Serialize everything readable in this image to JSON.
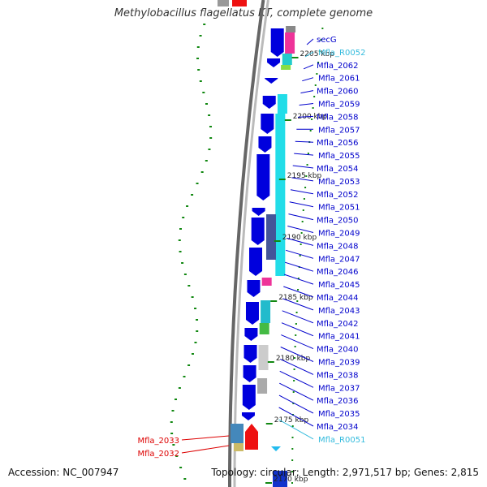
{
  "title": "Methylobacillus flagellatus KT, complete genome",
  "accession": "Accession: NC_007947",
  "summary": "Topology: circular; Length: 2,971,517 bp; Genes: 2,815",
  "colors": {
    "gene_label": "#0000cc",
    "rna_label": "#33bbdd",
    "highlight_label": "#dd0000",
    "cds_block": "#0000dd",
    "cyan_track": "#22dde8",
    "scale_ticks": "#118811"
  },
  "scale_ticks": [
    "2205 kbp",
    "2200 kbp",
    "2195 kbp",
    "2190 kbp",
    "2185 kbp",
    "2180 kbp",
    "2175 kbp",
    "2170 kbp"
  ],
  "gene_labels": [
    {
      "name": "secG",
      "kind": "gene"
    },
    {
      "name": "Mfla_R0052",
      "kind": "rna"
    },
    {
      "name": "Mfla_2062",
      "kind": "gene"
    },
    {
      "name": "Mfla_2061",
      "kind": "gene"
    },
    {
      "name": "Mfla_2060",
      "kind": "gene"
    },
    {
      "name": "Mfla_2059",
      "kind": "gene"
    },
    {
      "name": "Mfla_2058",
      "kind": "gene"
    },
    {
      "name": "Mfla_2057",
      "kind": "gene"
    },
    {
      "name": "Mfla_2056",
      "kind": "gene"
    },
    {
      "name": "Mfla_2055",
      "kind": "gene"
    },
    {
      "name": "Mfla_2054",
      "kind": "gene"
    },
    {
      "name": "Mfla_2053",
      "kind": "gene"
    },
    {
      "name": "Mfla_2052",
      "kind": "gene"
    },
    {
      "name": "Mfla_2051",
      "kind": "gene"
    },
    {
      "name": "Mfla_2050",
      "kind": "gene"
    },
    {
      "name": "Mfla_2049",
      "kind": "gene"
    },
    {
      "name": "Mfla_2048",
      "kind": "gene"
    },
    {
      "name": "Mfla_2047",
      "kind": "gene"
    },
    {
      "name": "Mfla_2046",
      "kind": "gene"
    },
    {
      "name": "Mfla_2045",
      "kind": "gene"
    },
    {
      "name": "Mfla_2044",
      "kind": "gene"
    },
    {
      "name": "Mfla_2043",
      "kind": "gene"
    },
    {
      "name": "Mfla_2042",
      "kind": "gene"
    },
    {
      "name": "Mfla_2041",
      "kind": "gene"
    },
    {
      "name": "Mfla_2040",
      "kind": "gene"
    },
    {
      "name": "Mfla_2039",
      "kind": "gene"
    },
    {
      "name": "Mfla_2038",
      "kind": "gene"
    },
    {
      "name": "Mfla_2037",
      "kind": "gene"
    },
    {
      "name": "Mfla_2036",
      "kind": "gene"
    },
    {
      "name": "Mfla_2035",
      "kind": "gene"
    },
    {
      "name": "Mfla_2034",
      "kind": "gene"
    },
    {
      "name": "Mfla_R0051",
      "kind": "rna"
    }
  ],
  "left_labels": [
    {
      "name": "Mfla_2033"
    },
    {
      "name": "Mfla_2032"
    }
  ]
}
